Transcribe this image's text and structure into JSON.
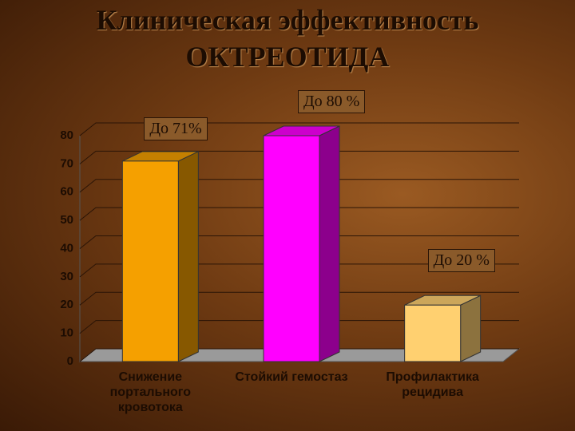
{
  "chart_data": {
    "type": "bar3d",
    "title": "Клиническая эффективность",
    "subtitle": "ОКТРЕОТИДА",
    "categories": [
      "Снижение\nпортального\nкровотока",
      "Стойкий гемостаз",
      "Профилактика\nрецидива"
    ],
    "values": [
      71,
      80,
      20
    ],
    "value_labels": [
      "До 71%",
      "До 80 %",
      "До 20 %"
    ],
    "colors": [
      "#f5a000",
      "#ff00ff",
      "#ffd070"
    ],
    "ylim": [
      0,
      80
    ],
    "yticks": [
      0,
      10,
      20,
      30,
      40,
      50,
      60,
      70,
      80
    ],
    "grid": true
  }
}
